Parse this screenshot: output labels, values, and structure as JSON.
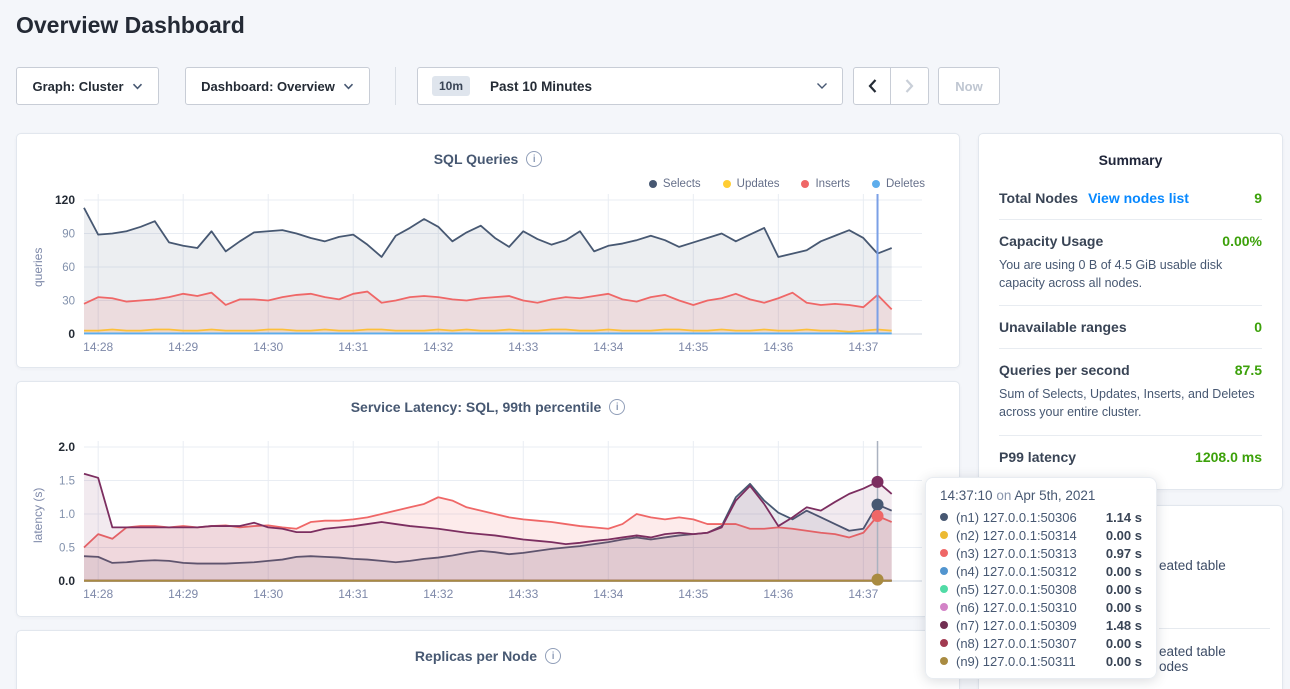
{
  "header": {
    "title": "Overview Dashboard"
  },
  "controls": {
    "graph_dropdown": "Graph: Cluster",
    "dashboard_dropdown": "Dashboard: Overview",
    "time_badge": "10m",
    "time_label": "Past 10 Minutes",
    "now_label": "Now"
  },
  "colors": {
    "green": "#3ca10a",
    "link_blue": "#0788ff"
  },
  "charts": {
    "sql": {
      "type": "line",
      "title": "SQL Queries",
      "ylabel": "queries",
      "ylim": [
        0,
        120
      ],
      "yticks": [
        {
          "label": "0",
          "v": 0,
          "bold": true
        },
        {
          "label": "30",
          "v": 30
        },
        {
          "label": "60",
          "v": 60
        },
        {
          "label": "90",
          "v": 90
        },
        {
          "label": "120",
          "v": 120,
          "bold": true
        }
      ],
      "xticks": [
        {
          "label": "14:28",
          "i": 1
        },
        {
          "label": "14:29",
          "i": 7
        },
        {
          "label": "14:30",
          "i": 13
        },
        {
          "label": "14:31",
          "i": 19
        },
        {
          "label": "14:32",
          "i": 25
        },
        {
          "label": "14:33",
          "i": 31
        },
        {
          "label": "14:34",
          "i": 37
        },
        {
          "label": "14:35",
          "i": 43
        },
        {
          "label": "14:36",
          "i": 49
        },
        {
          "label": "14:37",
          "i": 55
        }
      ],
      "legend": [
        {
          "label": "Selects",
          "color": "#475872"
        },
        {
          "label": "Updates",
          "color": "#ffcd33"
        },
        {
          "label": "Inserts",
          "color": "#ef6767"
        },
        {
          "label": "Deletes",
          "color": "#5dadec"
        }
      ],
      "crosshair": {
        "i": 56,
        "color": "#7ba0e6",
        "width": 2
      },
      "series": [
        {
          "name": "Selects",
          "color": "#475872",
          "fill": "rgba(71,88,114,0.10)",
          "values": [
            113,
            89,
            90,
            92,
            96,
            101,
            82,
            79,
            77,
            92,
            74,
            83,
            91,
            92,
            93,
            90,
            86,
            83,
            87,
            89,
            80,
            69,
            88,
            95,
            103,
            96,
            83,
            91,
            97,
            86,
            78,
            92,
            85,
            80,
            84,
            92,
            74,
            79,
            81,
            84,
            88,
            84,
            78,
            82,
            86,
            90,
            83,
            89,
            95,
            69,
            72,
            75,
            83,
            88,
            93,
            86,
            72,
            77
          ]
        },
        {
          "name": "Updates",
          "color": "#ffcd33",
          "fill": "rgba(255,205,51,0.12)",
          "values": [
            3,
            3,
            4,
            3,
            3,
            4,
            4,
            3,
            3,
            4,
            3,
            3,
            3,
            4,
            4,
            3,
            3,
            4,
            3,
            3,
            4,
            4,
            3,
            3,
            3,
            4,
            3,
            4,
            3,
            3,
            4,
            3,
            3,
            4,
            4,
            3,
            3,
            4,
            3,
            3,
            3,
            4,
            4,
            3,
            3,
            4,
            3,
            3,
            4,
            3,
            3,
            4,
            3,
            3,
            2,
            3,
            4,
            3
          ]
        },
        {
          "name": "Inserts",
          "color": "#ef6767",
          "fill": "rgba(239,103,103,0.13)",
          "values": [
            27,
            33,
            32,
            29,
            30,
            31,
            33,
            36,
            34,
            37,
            26,
            31,
            31,
            30,
            33,
            35,
            36,
            33,
            31,
            36,
            38,
            28,
            30,
            33,
            34,
            33,
            31,
            30,
            32,
            33,
            34,
            30,
            28,
            31,
            33,
            32,
            34,
            36,
            31,
            29,
            33,
            35,
            30,
            26,
            30,
            32,
            36,
            31,
            28,
            32,
            37,
            28,
            26,
            27,
            26,
            24,
            35,
            22
          ]
        },
        {
          "name": "Deletes",
          "color": "#5dadec",
          "fill": "none",
          "values": [
            0.5
          ]
        }
      ]
    },
    "latency": {
      "type": "line",
      "title": "Service Latency: SQL, 99th percentile",
      "ylabel": "latency (s)",
      "ylim": [
        0,
        2
      ],
      "yticks": [
        {
          "label": "0.0",
          "v": 0,
          "bold": true
        },
        {
          "label": "0.5",
          "v": 0.5
        },
        {
          "label": "1.0",
          "v": 1.0
        },
        {
          "label": "1.5",
          "v": 1.5
        },
        {
          "label": "2.0",
          "v": 2.0,
          "bold": true
        }
      ],
      "xticks": [
        {
          "label": "14:28",
          "i": 1
        },
        {
          "label": "14:29",
          "i": 7
        },
        {
          "label": "14:30",
          "i": 13
        },
        {
          "label": "14:31",
          "i": 19
        },
        {
          "label": "14:32",
          "i": 25
        },
        {
          "label": "14:33",
          "i": 31
        },
        {
          "label": "14:34",
          "i": 37
        },
        {
          "label": "14:35",
          "i": 43
        },
        {
          "label": "14:36",
          "i": 49
        },
        {
          "label": "14:37",
          "i": 55
        }
      ],
      "crosshair": {
        "i": 56,
        "color": "#aab2c0",
        "width": 1.5
      },
      "dots": [
        {
          "v": 1.48,
          "color": "#7c2e60"
        },
        {
          "v": 1.14,
          "color": "#475872"
        },
        {
          "v": 0.97,
          "color": "#ef6767"
        },
        {
          "v": 0.02,
          "color": "#a98b41"
        }
      ],
      "series": [
        {
          "name": "(n1) 127.0.0.1:50306",
          "color": "#475872",
          "fill": "rgba(71,88,114,0.10)",
          "values": [
            0.37,
            0.36,
            0.27,
            0.28,
            0.3,
            0.31,
            0.3,
            0.27,
            0.26,
            0.26,
            0.26,
            0.27,
            0.28,
            0.3,
            0.32,
            0.36,
            0.37,
            0.36,
            0.35,
            0.33,
            0.32,
            0.3,
            0.28,
            0.3,
            0.33,
            0.35,
            0.38,
            0.42,
            0.45,
            0.43,
            0.4,
            0.42,
            0.45,
            0.48,
            0.5,
            0.52,
            0.55,
            0.58,
            0.62,
            0.65,
            0.62,
            0.65,
            0.68,
            0.7,
            0.72,
            0.82,
            1.25,
            1.45,
            1.2,
            1.02,
            0.92,
            1.05,
            0.95,
            0.85,
            0.75,
            0.78,
            1.14,
            1.05
          ]
        },
        {
          "name": "(n2) 127.0.0.1:50314",
          "color": "#ecba33",
          "fill": "none",
          "values": [
            0.005
          ]
        },
        {
          "name": "(n3) 127.0.0.1:50313",
          "color": "#ef6767",
          "fill": "rgba(239,103,103,0.13)",
          "values": [
            0.5,
            0.7,
            0.63,
            0.8,
            0.82,
            0.82,
            0.8,
            0.82,
            0.8,
            0.82,
            0.83,
            0.8,
            0.82,
            0.83,
            0.8,
            0.78,
            0.88,
            0.9,
            0.9,
            0.92,
            0.95,
            1.0,
            1.05,
            1.1,
            1.15,
            1.25,
            1.2,
            1.1,
            1.05,
            1.0,
            0.95,
            0.92,
            0.9,
            0.88,
            0.85,
            0.82,
            0.8,
            0.78,
            0.85,
            1.0,
            0.95,
            0.92,
            0.95,
            0.92,
            0.85,
            0.85,
            0.85,
            0.78,
            0.78,
            0.8,
            0.78,
            0.75,
            0.72,
            0.7,
            0.65,
            0.72,
            0.97,
            0.88
          ]
        },
        {
          "name": "(n4) 127.0.0.1:50312",
          "color": "#5295cf",
          "fill": "none",
          "values": [
            0.005
          ]
        },
        {
          "name": "(n5) 127.0.0.1:50308",
          "color": "#51dba6",
          "fill": "none",
          "values": [
            0.005
          ]
        },
        {
          "name": "(n6) 127.0.0.1:50310",
          "color": "#d383c7",
          "fill": "none",
          "values": [
            0.005
          ]
        },
        {
          "name": "(n7) 127.0.0.1:50309",
          "color": "#7c2e60",
          "fill": "rgba(124,46,96,0.10)",
          "values": [
            1.6,
            1.54,
            0.8,
            0.8,
            0.8,
            0.8,
            0.8,
            0.8,
            0.8,
            0.82,
            0.82,
            0.82,
            0.87,
            0.8,
            0.78,
            0.73,
            0.73,
            0.78,
            0.8,
            0.82,
            0.85,
            0.88,
            0.85,
            0.82,
            0.8,
            0.78,
            0.75,
            0.72,
            0.7,
            0.68,
            0.65,
            0.62,
            0.6,
            0.58,
            0.55,
            0.57,
            0.6,
            0.62,
            0.65,
            0.68,
            0.65,
            0.7,
            0.72,
            0.7,
            0.72,
            0.8,
            1.2,
            1.42,
            1.15,
            0.82,
            0.95,
            1.1,
            1.05,
            1.18,
            1.3,
            1.38,
            1.48,
            1.3
          ]
        },
        {
          "name": "(n8) 127.0.0.1:50307",
          "color": "#a13a51",
          "fill": "none",
          "values": [
            0.005
          ]
        },
        {
          "name": "(n9) 127.0.0.1:50311",
          "color": "#a98b41",
          "fill": "none",
          "values": [
            0.005
          ]
        }
      ]
    },
    "replicas": {
      "type": "line",
      "title": "Replicas per Node"
    }
  },
  "summary": {
    "heading": "Summary",
    "stats": [
      {
        "label": "Total Nodes",
        "link": "View nodes list",
        "value": "9"
      },
      {
        "label": "Capacity Usage",
        "value": "0.00%",
        "desc": "You are using 0 B of 4.5 GiB usable disk capacity across all nodes."
      },
      {
        "label": "Unavailable ranges",
        "value": "0"
      },
      {
        "label": "Queries per second",
        "value": "87.5",
        "desc": "Sum of Selects, Updates, Inserts, and Deletes across your entire cluster."
      },
      {
        "label": "P99 latency",
        "value": "1208.0 ms"
      }
    ]
  },
  "tooltip": {
    "time": "14:37:10",
    "sep": "on",
    "date": "Apr 5th, 2021",
    "rows": [
      {
        "color": "#475872",
        "label": "(n1) 127.0.0.1:50306",
        "value": "1.14 s"
      },
      {
        "color": "#ecba33",
        "label": "(n2) 127.0.0.1:50314",
        "value": "0.00 s"
      },
      {
        "color": "#ef6767",
        "label": "(n3) 127.0.0.1:50313",
        "value": "0.97 s"
      },
      {
        "color": "#5295cf",
        "label": "(n4) 127.0.0.1:50312",
        "value": "0.00 s"
      },
      {
        "color": "#51dba6",
        "label": "(n5) 127.0.0.1:50308",
        "value": "0.00 s"
      },
      {
        "color": "#d383c7",
        "label": "(n6) 127.0.0.1:50310",
        "value": "0.00 s"
      },
      {
        "color": "#722f52",
        "label": "(n7) 127.0.0.1:50309",
        "value": "1.48 s"
      },
      {
        "color": "#a13a51",
        "label": "(n8) 127.0.0.1:50307",
        "value": "0.00 s"
      },
      {
        "color": "#a98b41",
        "label": "(n9) 127.0.0.1:50311",
        "value": "0.00 s"
      }
    ]
  },
  "events_panel": {
    "fragments": [
      {
        "text": "eated table"
      },
      {
        "text": "eated table"
      },
      {
        "text": "odes"
      }
    ]
  }
}
